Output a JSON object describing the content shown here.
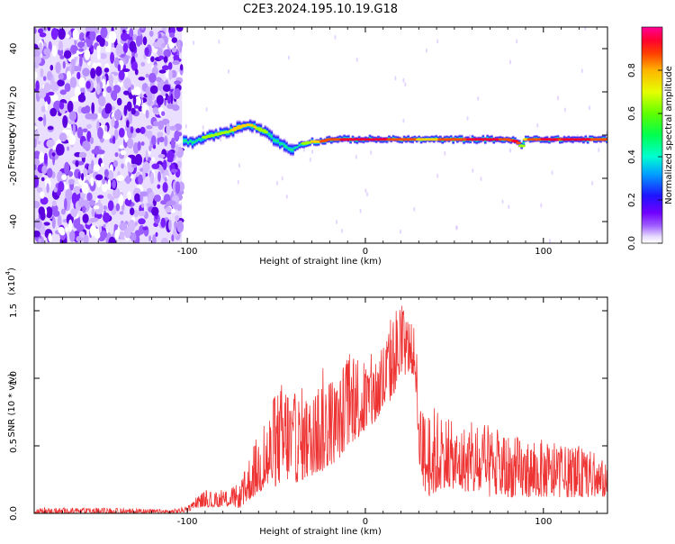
{
  "page_title": "C2E3.2024.195.10.19.G18",
  "chart_data": [
    {
      "type": "heatmap",
      "title": "C2E3.2024.195.10.19.G18",
      "xlabel": "Height of straight line (km)",
      "ylabel": "Frequency (Hz)",
      "xlim": [
        -186,
        136
      ],
      "ylim": [
        -50,
        50
      ],
      "xticks": [
        -100,
        0,
        100
      ],
      "xtick_labels": [
        "-100",
        "0",
        "100"
      ],
      "yticks": [
        -40,
        -20,
        0,
        20,
        40
      ],
      "ytick_labels": [
        "-40",
        "-20",
        "0",
        "20",
        "40"
      ],
      "colorbar": {
        "label": "Normalized spectral amplitude",
        "range": [
          0,
          1
        ],
        "ticks": [
          0.0,
          0.2,
          0.4,
          0.6,
          0.8
        ],
        "tick_labels": [
          "0.0",
          "0.2",
          "0.4",
          "0.6",
          "0.8"
        ],
        "colors": [
          "#ffffff",
          "#d5b8ff",
          "#8a2be2",
          "#1e00ff",
          "#00b4ff",
          "#00ffc8",
          "#00ff00",
          "#c8ff00",
          "#ffd200",
          "#ff6400",
          "#ff0000",
          "#ff0096"
        ]
      },
      "noise_region": {
        "x_from": -186,
        "x_to": -103,
        "description": "broadband noise"
      },
      "signal_ridge": {
        "x": [
          -102,
          -95,
          -90,
          -85,
          -80,
          -75,
          -70,
          -65,
          -60,
          -55,
          -50,
          -45,
          -42,
          -40,
          -35,
          -30,
          -25,
          -20,
          -10,
          0,
          10,
          20,
          30,
          40,
          50,
          60,
          70,
          80,
          85,
          88,
          90,
          95,
          100,
          110,
          120,
          136
        ],
        "frequency": [
          -3,
          -3,
          -1,
          0,
          1,
          2,
          4,
          5,
          3,
          1,
          -3,
          -5,
          -7,
          -6,
          -4,
          -3,
          -3,
          -2,
          -2,
          -2,
          -2,
          -2,
          -2,
          -2,
          -2,
          -2,
          -2,
          -2,
          -3,
          -5,
          -2,
          -2,
          -2,
          -2,
          -2,
          -2
        ],
        "amplitude": [
          0.5,
          0.55,
          0.6,
          0.62,
          0.65,
          0.7,
          0.75,
          0.8,
          0.65,
          0.6,
          0.55,
          0.5,
          0.45,
          0.5,
          0.6,
          0.75,
          0.8,
          0.85,
          0.9,
          0.92,
          0.9,
          0.85,
          0.8,
          0.8,
          0.85,
          0.9,
          0.92,
          0.85,
          0.9,
          0.7,
          0.8,
          0.85,
          0.9,
          0.88,
          0.9,
          0.85
        ]
      }
    },
    {
      "type": "line",
      "title": "",
      "xlabel": "Height of straight line (km)",
      "ylabel": "SNR (10 * v/v)",
      "y_multiplier_label": "(x10",
      "y_multiplier_exp": "4",
      "xlim": [
        -186,
        136
      ],
      "ylim": [
        0,
        1.6
      ],
      "xticks": [
        -100,
        0,
        100
      ],
      "xtick_labels": [
        "-100",
        "0",
        "100"
      ],
      "yticks": [
        0.0,
        0.5,
        1.0,
        1.5
      ],
      "ytick_labels": [
        "0.0",
        "0.5",
        "1.0",
        "1.5"
      ],
      "series": [
        {
          "name": "SNR",
          "color": "#ee3333",
          "envelope_x": [
            -186,
            -150,
            -110,
            -100,
            -95,
            -90,
            -85,
            -80,
            -75,
            -70,
            -65,
            -60,
            -55,
            -50,
            -45,
            -40,
            -35,
            -30,
            -25,
            -20,
            -15,
            -10,
            -5,
            0,
            5,
            10,
            15,
            20,
            25,
            28,
            30,
            33,
            35,
            40,
            45,
            50,
            60,
            70,
            80,
            90,
            100,
            110,
            120,
            130,
            136
          ],
          "envelope_lo": [
            0.0,
            0.0,
            0.0,
            0.01,
            0.04,
            0.05,
            0.04,
            0.05,
            0.05,
            0.04,
            0.1,
            0.15,
            0.18,
            0.2,
            0.25,
            0.22,
            0.25,
            0.28,
            0.3,
            0.35,
            0.4,
            0.5,
            0.55,
            0.6,
            0.65,
            0.75,
            0.85,
            1.0,
            1.05,
            1.0,
            0.4,
            0.15,
            0.12,
            0.15,
            0.2,
            0.18,
            0.15,
            0.12,
            0.12,
            0.12,
            0.12,
            0.12,
            0.12,
            0.12,
            0.12
          ],
          "envelope_hi": [
            0.04,
            0.04,
            0.03,
            0.05,
            0.12,
            0.18,
            0.15,
            0.18,
            0.2,
            0.22,
            0.45,
            0.6,
            0.75,
            0.9,
            1.05,
            0.9,
            0.95,
            0.85,
            1.1,
            1.05,
            1.0,
            1.2,
            1.25,
            1.15,
            1.2,
            1.3,
            1.5,
            1.6,
            1.45,
            1.35,
            1.0,
            0.75,
            0.8,
            0.8,
            0.75,
            0.65,
            0.68,
            0.65,
            0.6,
            0.55,
            0.55,
            0.5,
            0.5,
            0.45,
            0.35
          ]
        }
      ]
    }
  ]
}
